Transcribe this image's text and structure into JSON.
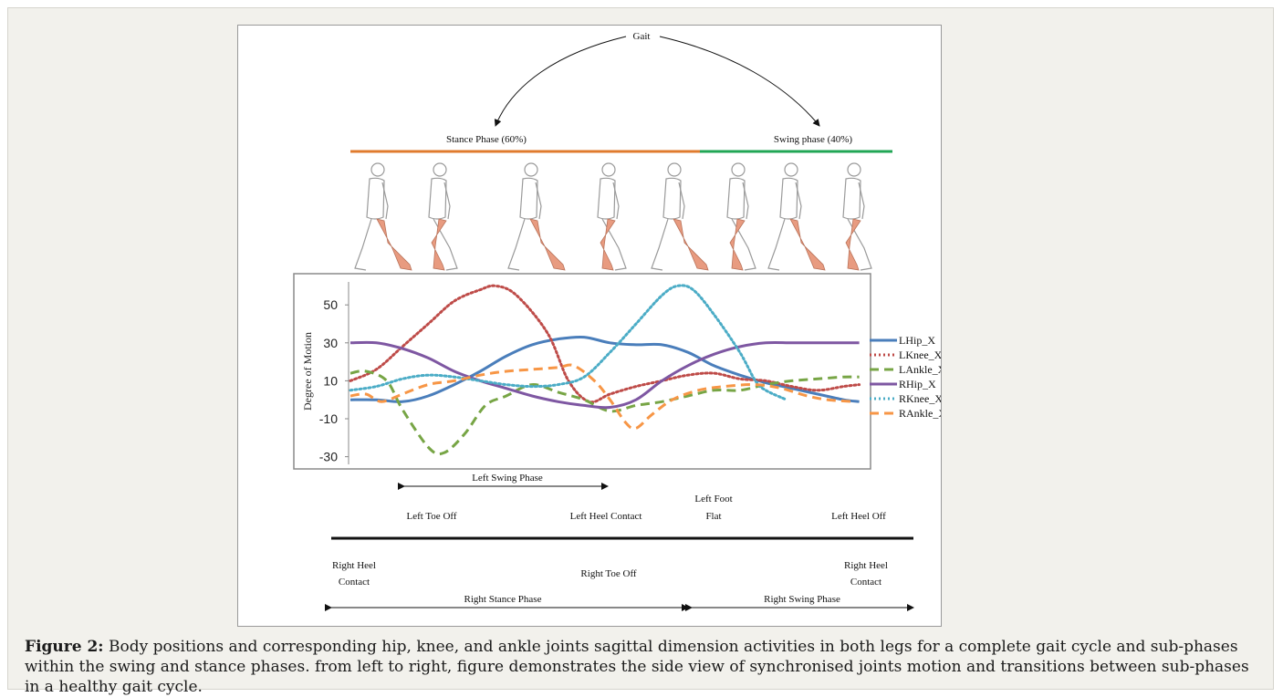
{
  "figure": {
    "gait_label": "Gait",
    "stance_phase_label": "Stance Phase (60%)",
    "swing_phase_label": "Swing phase (40%)",
    "colors": {
      "stance": "#e07b2e",
      "swing": "#21a655",
      "skin": "#e89b80"
    },
    "walking_figures": [
      "walking-figure",
      "walking-figure",
      "walking-figure",
      "walking-figure",
      "walking-figure",
      "walking-figure",
      "walking-figure",
      "walking-figure"
    ]
  },
  "chart_data": {
    "type": "line",
    "ylabel": "Degree of Motion",
    "ylim": [
      -35,
      65
    ],
    "yticks": [
      -30,
      -10,
      10,
      30,
      50
    ],
    "xlim": [
      0,
      100
    ],
    "grid": false,
    "legend_position": "right",
    "series": [
      {
        "name": "LHip_X",
        "color": "#4a7ebb",
        "style": "solid",
        "points": [
          [
            0,
            0
          ],
          [
            5,
            0
          ],
          [
            10,
            -1
          ],
          [
            15,
            2
          ],
          [
            20,
            8
          ],
          [
            25,
            15
          ],
          [
            30,
            23
          ],
          [
            35,
            29
          ],
          [
            40,
            32
          ],
          [
            45,
            33
          ],
          [
            50,
            30
          ],
          [
            55,
            29
          ],
          [
            60,
            29
          ],
          [
            65,
            25
          ],
          [
            70,
            18
          ],
          [
            75,
            13
          ],
          [
            80,
            9
          ],
          [
            85,
            6
          ],
          [
            90,
            3
          ],
          [
            95,
            0
          ],
          [
            98,
            -1
          ]
        ]
      },
      {
        "name": "LKnee_X",
        "color": "#be4b48",
        "style": "dotted",
        "points": [
          [
            0,
            10
          ],
          [
            5,
            16
          ],
          [
            10,
            28
          ],
          [
            15,
            40
          ],
          [
            20,
            52
          ],
          [
            25,
            58
          ],
          [
            28,
            60
          ],
          [
            32,
            55
          ],
          [
            38,
            35
          ],
          [
            42,
            10
          ],
          [
            46,
            -1
          ],
          [
            50,
            3
          ],
          [
            55,
            7
          ],
          [
            60,
            10
          ],
          [
            65,
            13
          ],
          [
            70,
            14
          ],
          [
            75,
            11
          ],
          [
            80,
            10
          ],
          [
            85,
            7
          ],
          [
            90,
            5
          ],
          [
            95,
            7
          ],
          [
            98,
            8
          ]
        ]
      },
      {
        "name": "LAnkle_X",
        "color": "#77a545",
        "style": "dashed",
        "points": [
          [
            0,
            14
          ],
          [
            3,
            15
          ],
          [
            7,
            10
          ],
          [
            10,
            -5
          ],
          [
            15,
            -25
          ],
          [
            18,
            -28
          ],
          [
            22,
            -18
          ],
          [
            26,
            -3
          ],
          [
            30,
            2
          ],
          [
            35,
            8
          ],
          [
            40,
            4
          ],
          [
            45,
            0
          ],
          [
            50,
            -6
          ],
          [
            55,
            -3
          ],
          [
            60,
            -1
          ],
          [
            65,
            2
          ],
          [
            70,
            5
          ],
          [
            75,
            5
          ],
          [
            80,
            8
          ],
          [
            85,
            10
          ],
          [
            90,
            11
          ],
          [
            95,
            12
          ],
          [
            98,
            12
          ]
        ]
      },
      {
        "name": "RHip_X",
        "color": "#7e57a2",
        "style": "solid",
        "points": [
          [
            0,
            30
          ],
          [
            5,
            30
          ],
          [
            10,
            27
          ],
          [
            15,
            22
          ],
          [
            20,
            15
          ],
          [
            25,
            10
          ],
          [
            30,
            6
          ],
          [
            35,
            2
          ],
          [
            40,
            -1
          ],
          [
            45,
            -3
          ],
          [
            50,
            -4
          ],
          [
            55,
            0
          ],
          [
            60,
            10
          ],
          [
            65,
            18
          ],
          [
            70,
            24
          ],
          [
            75,
            28
          ],
          [
            80,
            30
          ],
          [
            85,
            30
          ],
          [
            90,
            30
          ],
          [
            95,
            30
          ],
          [
            98,
            30
          ]
        ]
      },
      {
        "name": "RKnee_X",
        "color": "#4bacc6",
        "style": "dotted",
        "points": [
          [
            0,
            5
          ],
          [
            5,
            7
          ],
          [
            10,
            11
          ],
          [
            15,
            13
          ],
          [
            20,
            12
          ],
          [
            25,
            10
          ],
          [
            30,
            8
          ],
          [
            35,
            7
          ],
          [
            40,
            8
          ],
          [
            45,
            12
          ],
          [
            50,
            25
          ],
          [
            55,
            40
          ],
          [
            60,
            55
          ],
          [
            63,
            60
          ],
          [
            66,
            58
          ],
          [
            70,
            45
          ],
          [
            75,
            25
          ],
          [
            78,
            10
          ],
          [
            80,
            5
          ],
          [
            84,
            0
          ]
        ]
      },
      {
        "name": "RAnkle_X",
        "color": "#f79646",
        "style": "dashed",
        "points": [
          [
            0,
            2
          ],
          [
            3,
            3
          ],
          [
            6,
            -1
          ],
          [
            10,
            3
          ],
          [
            15,
            8
          ],
          [
            20,
            10
          ],
          [
            25,
            13
          ],
          [
            30,
            15
          ],
          [
            35,
            16
          ],
          [
            40,
            17
          ],
          [
            43,
            18
          ],
          [
            47,
            10
          ],
          [
            50,
            0
          ],
          [
            53,
            -12
          ],
          [
            55,
            -15
          ],
          [
            58,
            -8
          ],
          [
            62,
            0
          ],
          [
            67,
            5
          ],
          [
            72,
            7
          ],
          [
            78,
            8
          ],
          [
            83,
            6
          ],
          [
            88,
            2
          ],
          [
            92,
            0
          ],
          [
            97,
            -1
          ]
        ]
      }
    ]
  },
  "timeline": {
    "left_swing_phase": "Left Swing Phase",
    "left_toe_off": "Left Toe Off",
    "left_heel_contact": "Left Heel Contact",
    "left_foot_flat_line1": "Left Foot",
    "left_foot_flat_line2": "Flat",
    "left_heel_off": "Left Heel Off",
    "right_heel_contact_start_line1": "Right Heel",
    "right_heel_contact_start_line2": "Contact",
    "right_toe_off": "Right Toe Off",
    "right_heel_contact_end_line1": "Right Heel",
    "right_heel_contact_end_line2": "Contact",
    "right_stance_phase": "Right Stance Phase",
    "right_swing_phase": "Right Swing Phase"
  },
  "caption": {
    "label": "Figure 2:",
    "text": " Body positions and corresponding hip, knee, and ankle joints sagittal dimension activities in both legs for a complete gait cycle and sub-phases within the swing and stance phases. from left to right, figure demonstrates the side view of synchronised joints motion and transitions between sub-phases in a healthy gait cycle."
  }
}
